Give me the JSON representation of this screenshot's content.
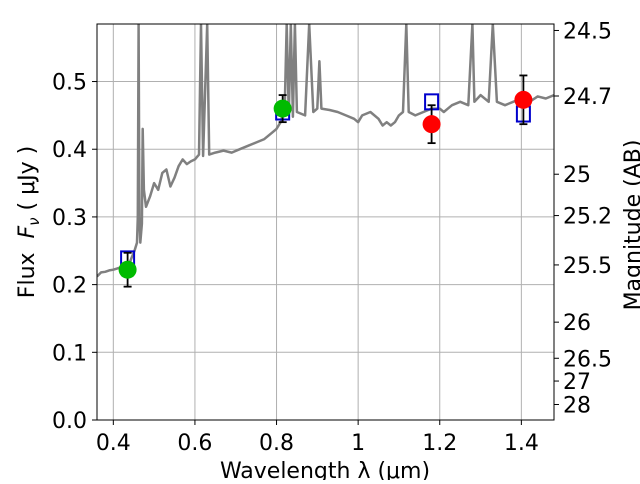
{
  "chart_data": {
    "type": "scatter",
    "xlabel": "Wavelength  λ (μm)",
    "ylabel_left_prefix": "Flux  ",
    "ylabel_left_symbol": "F",
    "ylabel_left_sub": "ν",
    "ylabel_left_suffix": " ( μJy )",
    "ylabel_right": "Magnitude (AB)",
    "xlim": [
      0.36,
      1.48
    ],
    "ylim": [
      0.0,
      0.585
    ],
    "grid": true,
    "x_ticks": [
      0.4,
      0.6,
      0.8,
      1.0,
      1.2,
      1.4
    ],
    "x_tick_labels": [
      "0.4",
      "0.6",
      "0.8",
      "1",
      "1.2",
      "1.4"
    ],
    "y_ticks": [
      0.0,
      0.1,
      0.2,
      0.3,
      0.4,
      0.5
    ],
    "y_tick_labels": [
      "0.0",
      "0.1",
      "0.2",
      "0.3",
      "0.4",
      "0.5"
    ],
    "mag_ticks": [
      24.5,
      24.7,
      25.0,
      25.2,
      25.5,
      26.0,
      26.5,
      27.0,
      28.0
    ],
    "mag_tick_labels": [
      "24.5",
      "24.7",
      "25",
      "25.2",
      "25.5",
      "26",
      "26.5",
      "27",
      "28"
    ],
    "colors": {
      "spectrum": "#808080",
      "observed_green": "#00bb00",
      "observed_red": "#ff0000",
      "model_box": "#0000cc",
      "errorbar": "#000000",
      "grid": "#b0b0b0"
    },
    "spectrum": [
      [
        0.36,
        0.212
      ],
      [
        0.37,
        0.218
      ],
      [
        0.38,
        0.219
      ],
      [
        0.39,
        0.221
      ],
      [
        0.4,
        0.222
      ],
      [
        0.41,
        0.224
      ],
      [
        0.42,
        0.226
      ],
      [
        0.43,
        0.228
      ],
      [
        0.44,
        0.232
      ],
      [
        0.445,
        0.24
      ],
      [
        0.452,
        0.25
      ],
      [
        0.458,
        0.262
      ],
      [
        0.46,
        0.3
      ],
      [
        0.462,
        0.585
      ],
      [
        0.464,
        0.3
      ],
      [
        0.466,
        0.262
      ],
      [
        0.47,
        0.29
      ],
      [
        0.472,
        0.43
      ],
      [
        0.475,
        0.34
      ],
      [
        0.48,
        0.315
      ],
      [
        0.49,
        0.33
      ],
      [
        0.5,
        0.35
      ],
      [
        0.51,
        0.34
      ],
      [
        0.52,
        0.365
      ],
      [
        0.53,
        0.37
      ],
      [
        0.54,
        0.345
      ],
      [
        0.55,
        0.358
      ],
      [
        0.56,
        0.375
      ],
      [
        0.57,
        0.385
      ],
      [
        0.58,
        0.378
      ],
      [
        0.59,
        0.382
      ],
      [
        0.6,
        0.385
      ],
      [
        0.61,
        0.392
      ],
      [
        0.615,
        0.585
      ],
      [
        0.62,
        0.39
      ],
      [
        0.63,
        0.585
      ],
      [
        0.635,
        0.392
      ],
      [
        0.65,
        0.395
      ],
      [
        0.67,
        0.398
      ],
      [
        0.69,
        0.395
      ],
      [
        0.71,
        0.4
      ],
      [
        0.73,
        0.405
      ],
      [
        0.75,
        0.41
      ],
      [
        0.77,
        0.415
      ],
      [
        0.79,
        0.425
      ],
      [
        0.8,
        0.43
      ],
      [
        0.81,
        0.44
      ],
      [
        0.82,
        0.46
      ],
      [
        0.825,
        0.585
      ],
      [
        0.83,
        0.45
      ],
      [
        0.835,
        0.585
      ],
      [
        0.84,
        0.448
      ],
      [
        0.845,
        0.585
      ],
      [
        0.85,
        0.455
      ],
      [
        0.87,
        0.45
      ],
      [
        0.88,
        0.585
      ],
      [
        0.89,
        0.455
      ],
      [
        0.9,
        0.46
      ],
      [
        0.905,
        0.53
      ],
      [
        0.91,
        0.46
      ],
      [
        0.93,
        0.458
      ],
      [
        0.95,
        0.455
      ],
      [
        0.97,
        0.45
      ],
      [
        0.99,
        0.445
      ],
      [
        1.0,
        0.44
      ],
      [
        1.01,
        0.45
      ],
      [
        1.03,
        0.455
      ],
      [
        1.05,
        0.445
      ],
      [
        1.06,
        0.435
      ],
      [
        1.07,
        0.44
      ],
      [
        1.08,
        0.435
      ],
      [
        1.09,
        0.44
      ],
      [
        1.1,
        0.45
      ],
      [
        1.11,
        0.455
      ],
      [
        1.118,
        0.585
      ],
      [
        1.124,
        0.455
      ],
      [
        1.14,
        0.45
      ],
      [
        1.16,
        0.455
      ],
      [
        1.18,
        0.46
      ],
      [
        1.2,
        0.46
      ],
      [
        1.21,
        0.455
      ],
      [
        1.22,
        0.46
      ],
      [
        1.23,
        0.465
      ],
      [
        1.25,
        0.47
      ],
      [
        1.27,
        0.465
      ],
      [
        1.28,
        0.585
      ],
      [
        1.285,
        0.47
      ],
      [
        1.3,
        0.48
      ],
      [
        1.32,
        0.47
      ],
      [
        1.33,
        0.585
      ],
      [
        1.34,
        0.47
      ],
      [
        1.36,
        0.465
      ],
      [
        1.38,
        0.47
      ],
      [
        1.4,
        0.475
      ],
      [
        1.42,
        0.47
      ],
      [
        1.44,
        0.478
      ],
      [
        1.46,
        0.475
      ],
      [
        1.48,
        0.48
      ]
    ],
    "observed": [
      {
        "x": 0.435,
        "y": 0.222,
        "err": 0.025,
        "color": "green"
      },
      {
        "x": 0.815,
        "y": 0.46,
        "err": 0.02,
        "color": "green"
      },
      {
        "x": 1.18,
        "y": 0.437,
        "err": 0.028,
        "color": "red"
      },
      {
        "x": 1.405,
        "y": 0.473,
        "err": 0.036,
        "color": "red"
      }
    ],
    "model": [
      {
        "x": 0.435,
        "y": 0.238
      },
      {
        "x": 0.815,
        "y": 0.455
      },
      {
        "x": 1.18,
        "y": 0.47
      },
      {
        "x": 1.405,
        "y": 0.452
      }
    ]
  }
}
